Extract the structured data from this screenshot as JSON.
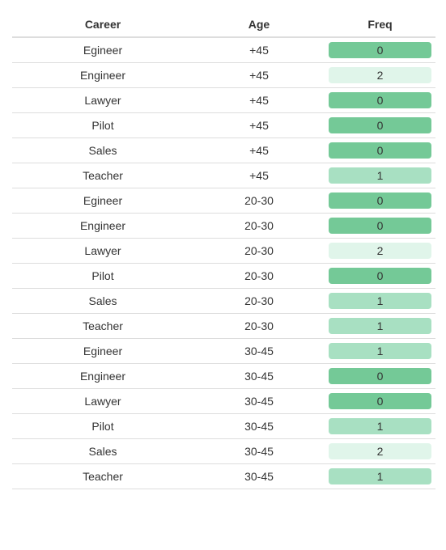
{
  "colors": {
    "freq_0": "#74c997",
    "freq_1": "#a8e0c2",
    "freq_2": "#e0f5ea"
  },
  "table": {
    "headers": {
      "career": "Career",
      "age": "Age",
      "freq": "Freq"
    },
    "rows": [
      {
        "career": "Egineer",
        "age": "+45",
        "freq": 0
      },
      {
        "career": "Engineer",
        "age": "+45",
        "freq": 2
      },
      {
        "career": "Lawyer",
        "age": "+45",
        "freq": 0
      },
      {
        "career": "Pilot",
        "age": "+45",
        "freq": 0
      },
      {
        "career": "Sales",
        "age": "+45",
        "freq": 0
      },
      {
        "career": "Teacher",
        "age": "+45",
        "freq": 1
      },
      {
        "career": "Egineer",
        "age": "20-30",
        "freq": 0
      },
      {
        "career": "Engineer",
        "age": "20-30",
        "freq": 0
      },
      {
        "career": "Lawyer",
        "age": "20-30",
        "freq": 2
      },
      {
        "career": "Pilot",
        "age": "20-30",
        "freq": 0
      },
      {
        "career": "Sales",
        "age": "20-30",
        "freq": 1
      },
      {
        "career": "Teacher",
        "age": "20-30",
        "freq": 1
      },
      {
        "career": "Egineer",
        "age": "30-45",
        "freq": 1
      },
      {
        "career": "Engineer",
        "age": "30-45",
        "freq": 0
      },
      {
        "career": "Lawyer",
        "age": "30-45",
        "freq": 0
      },
      {
        "career": "Pilot",
        "age": "30-45",
        "freq": 1
      },
      {
        "career": "Sales",
        "age": "30-45",
        "freq": 2
      },
      {
        "career": "Teacher",
        "age": "30-45",
        "freq": 1
      }
    ]
  }
}
